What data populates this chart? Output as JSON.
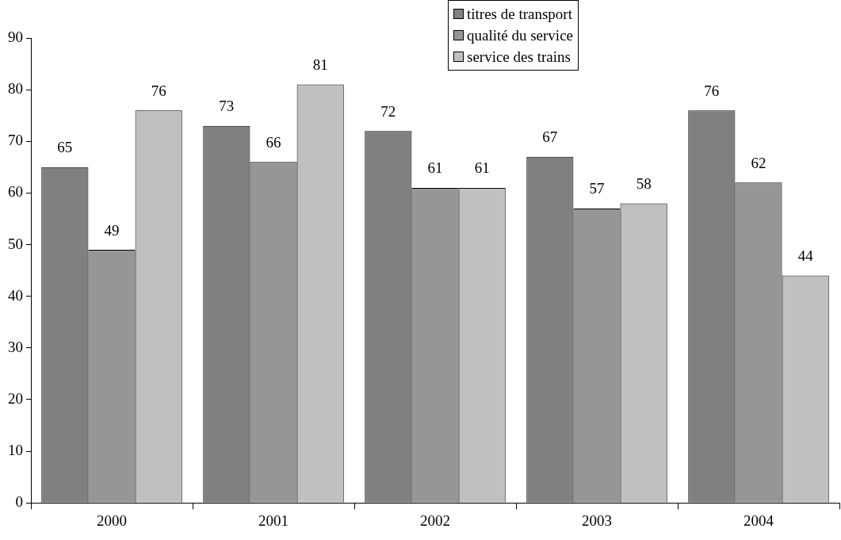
{
  "chart_data": {
    "type": "bar",
    "categories": [
      "2000",
      "2001",
      "2002",
      "2003",
      "2004"
    ],
    "series": [
      {
        "name": "titres de transport",
        "color": "#808080",
        "values": [
          65,
          73,
          72,
          67,
          76
        ]
      },
      {
        "name": "qualité du service",
        "color": "#969696",
        "values": [
          49,
          66,
          61,
          57,
          62
        ]
      },
      {
        "name": "service des trains",
        "color": "#c0c0c0",
        "values": [
          76,
          81,
          61,
          58,
          44
        ]
      }
    ],
    "ylim": [
      0,
      90
    ],
    "yticks": [
      0,
      10,
      20,
      30,
      40,
      50,
      60,
      70,
      80,
      90
    ],
    "grid": false,
    "legend": "top right",
    "data_labels": true
  }
}
